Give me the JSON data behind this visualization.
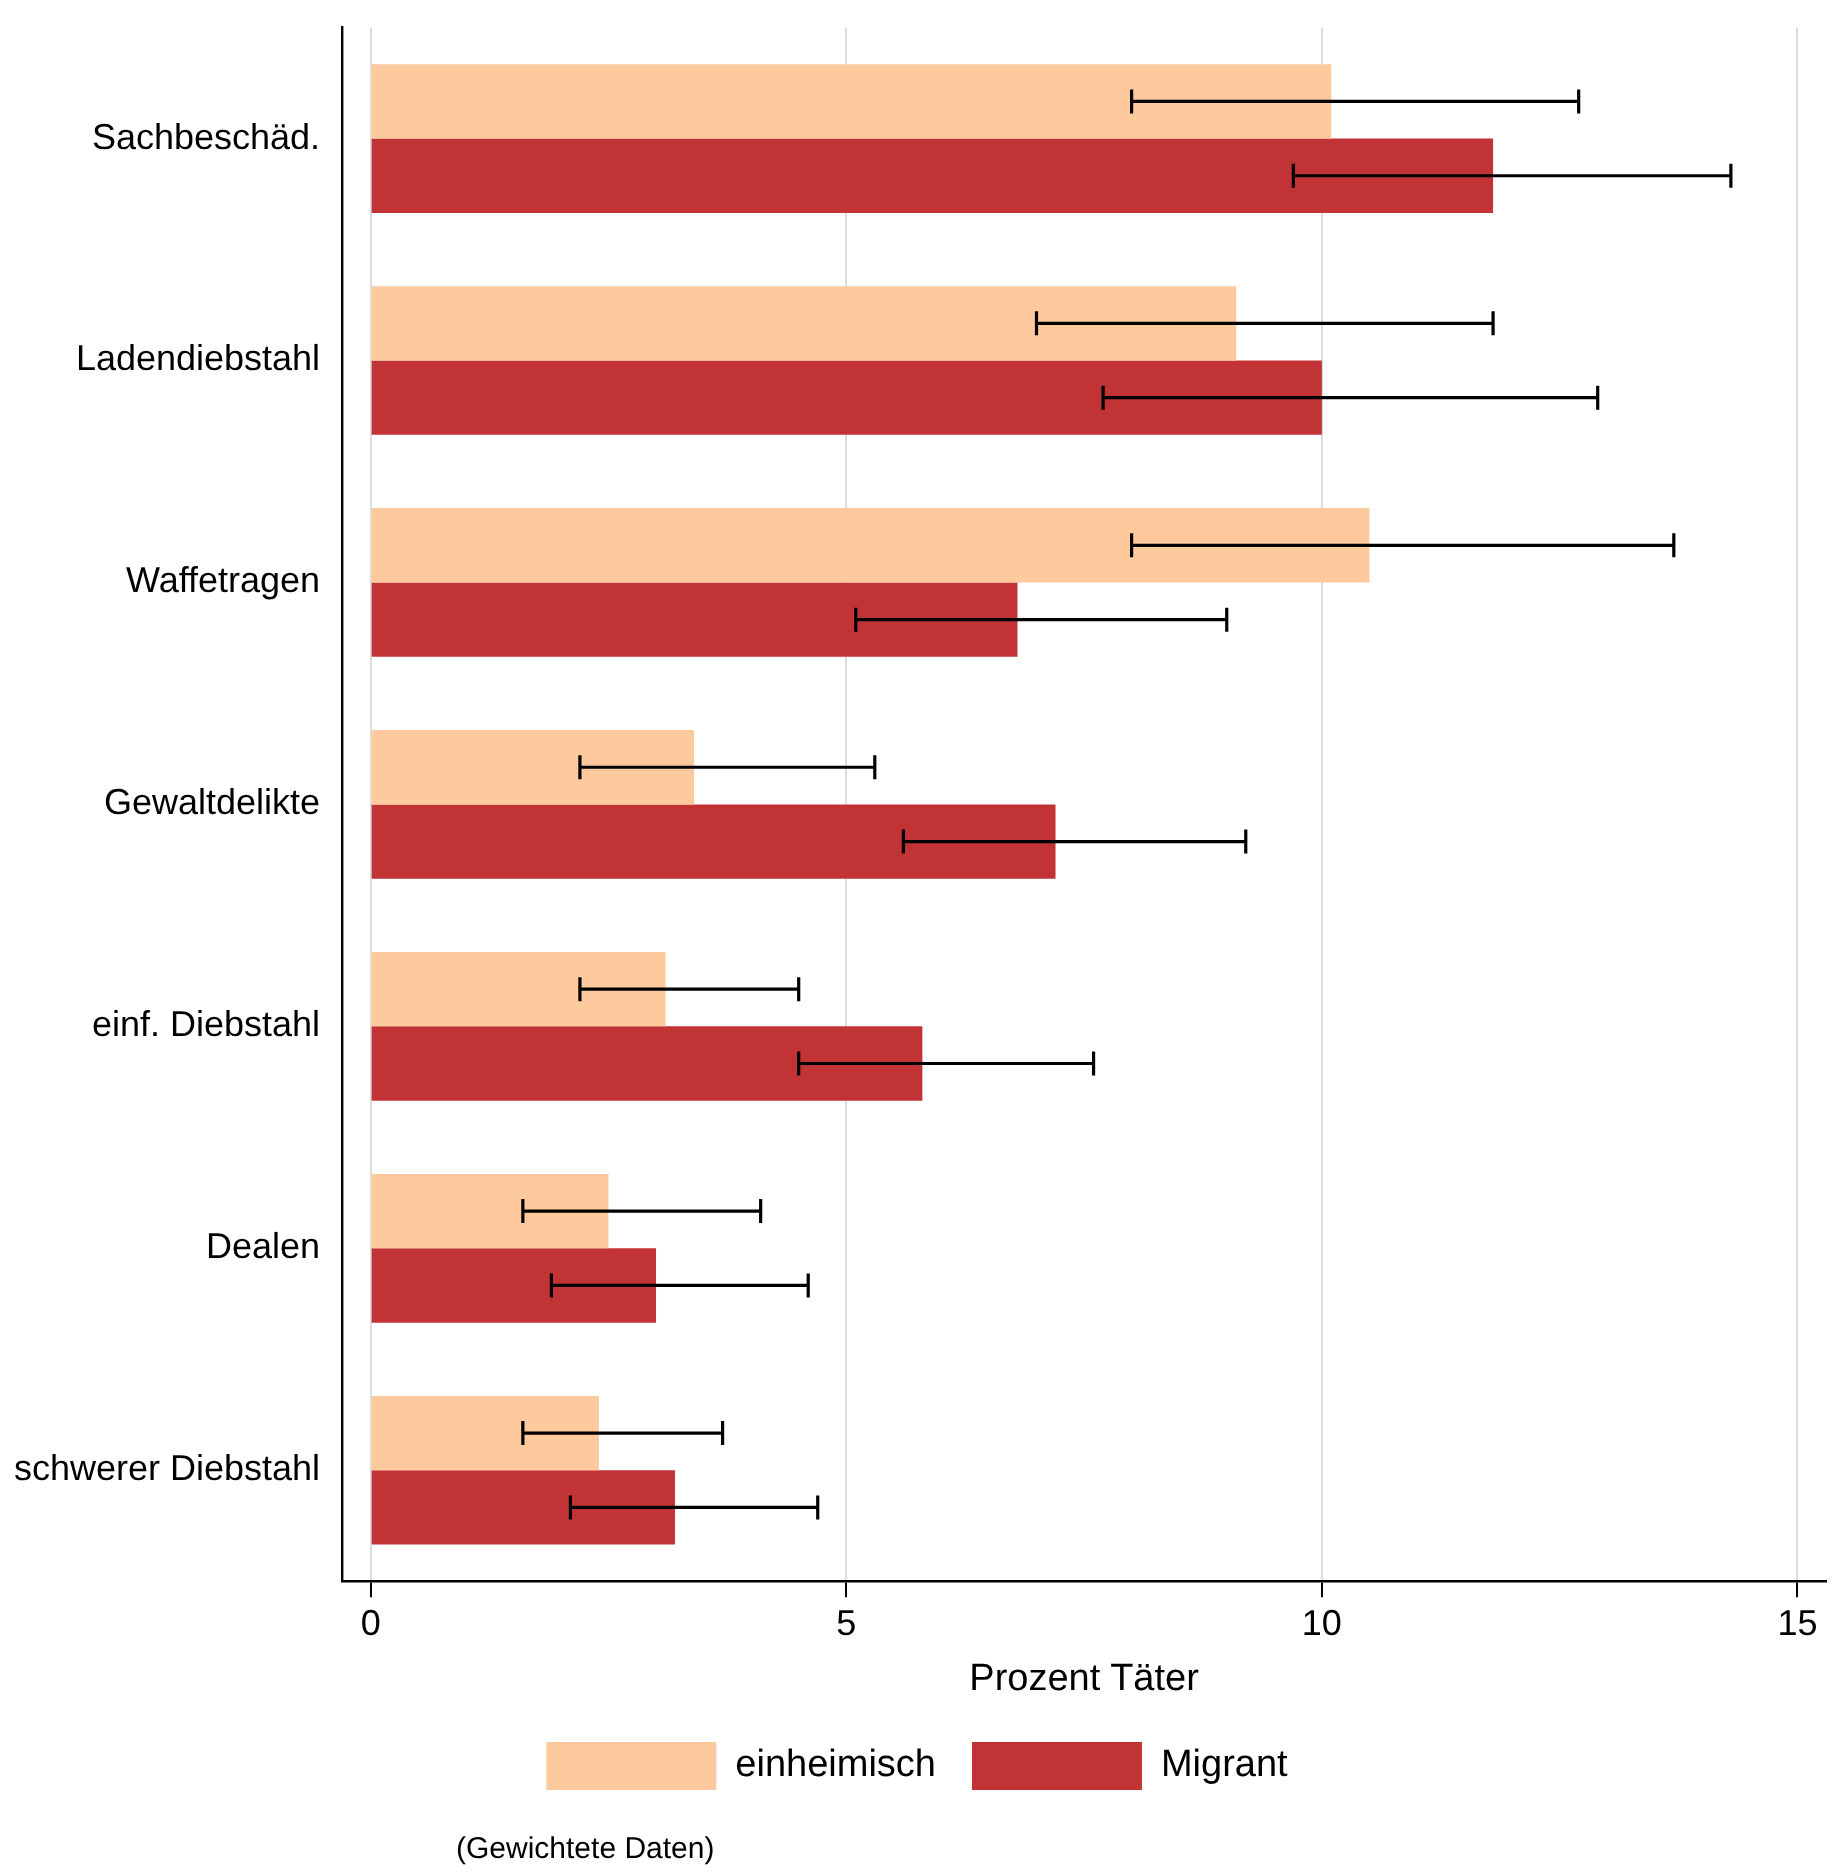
{
  "chart_data": {
    "type": "bar",
    "orientation": "horizontal",
    "xlabel": "Prozent Täter",
    "annotations": [
      "(Gewichtete Daten)"
    ],
    "categories": [
      "Sachbeschäd.",
      "Ladendiebstahl",
      "Waffetragen",
      "Gewaltdelikte",
      "einf. Diebstahl",
      "Dealen",
      "schwerer Diebstahl"
    ],
    "series": [
      {
        "name": "einheimisch",
        "color": "#fdc99d",
        "values": [
          10.1,
          9.1,
          10.5,
          3.4,
          3.1,
          2.5,
          2.4
        ],
        "errors": [
          [
            8.0,
            12.7
          ],
          [
            7.0,
            11.8
          ],
          [
            8.0,
            13.7
          ],
          [
            2.2,
            5.3
          ],
          [
            2.2,
            4.5
          ],
          [
            1.6,
            4.1
          ],
          [
            1.6,
            3.7
          ]
        ]
      },
      {
        "name": "Migrant",
        "color": "#c13335",
        "values": [
          11.8,
          10.0,
          6.8,
          7.2,
          5.8,
          3.0,
          3.2
        ],
        "errors": [
          [
            9.7,
            14.3
          ],
          [
            7.7,
            12.9
          ],
          [
            5.1,
            9.0
          ],
          [
            5.6,
            9.2
          ],
          [
            4.5,
            7.6
          ],
          [
            1.9,
            4.6
          ],
          [
            2.1,
            4.7
          ]
        ]
      }
    ],
    "xlim": [
      -0.3,
      15.3
    ],
    "xticks": [
      0,
      5,
      10,
      15
    ],
    "grid": "x",
    "legend": "bottom"
  }
}
